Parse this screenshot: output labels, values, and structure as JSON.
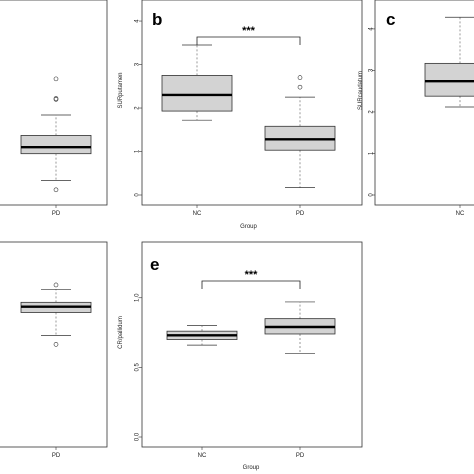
{
  "chart_data": [
    {
      "panel_label": "",
      "type": "box",
      "xlabel": "",
      "ylabel": "",
      "categories": [
        "PD"
      ],
      "ylim": [
        0,
        4.3
      ],
      "yticks": [],
      "significance": "",
      "boxes": [
        {
          "category": "PD",
          "min": 0.33,
          "q1": 0.95,
          "median": 1.1,
          "q3": 1.37,
          "max": 1.84,
          "outliers": [
            0.12,
            2.2,
            2.22,
            2.67
          ],
          "color": "#d3d3d3"
        }
      ]
    },
    {
      "panel_label": "b",
      "type": "box",
      "xlabel": "Group",
      "ylabel": "SURputamen",
      "categories": [
        "NC",
        "PD"
      ],
      "ylim": [
        0,
        4.3
      ],
      "yticks": [
        "0",
        "1",
        "2",
        "3",
        "4"
      ],
      "significance": "***",
      "boxes": [
        {
          "category": "NC",
          "min": 1.72,
          "q1": 1.93,
          "median": 2.3,
          "q3": 2.75,
          "max": 3.45,
          "outliers": [],
          "color": "#d3d3d3"
        },
        {
          "category": "PD",
          "min": 0.17,
          "q1": 1.03,
          "median": 1.28,
          "q3": 1.58,
          "max": 2.25,
          "outliers": [
            2.48,
            2.7
          ],
          "color": "#d3d3d3"
        }
      ]
    },
    {
      "panel_label": "c",
      "type": "box",
      "xlabel": "",
      "ylabel": "SURcaudatum",
      "categories": [
        "NC"
      ],
      "ylim": [
        0,
        4.6
      ],
      "yticks": [
        "0",
        "1",
        "2",
        "3",
        "4"
      ],
      "significance": "",
      "boxes": [
        {
          "category": "NC",
          "min": 2.12,
          "q1": 2.38,
          "median": 2.74,
          "q3": 3.17,
          "max": 4.28,
          "outliers": [],
          "color": "#d3d3d3"
        }
      ]
    },
    {
      "panel_label": "",
      "type": "box",
      "xlabel": "",
      "ylabel": "",
      "categories": [
        "PD"
      ],
      "ylim": [
        0,
        1.25
      ],
      "yticks": [],
      "significance": "",
      "boxes": [
        {
          "category": "PD",
          "min": 0.7,
          "q1": 0.86,
          "median": 0.9,
          "q3": 0.93,
          "max": 1.02,
          "outliers": [
            0.64,
            1.05
          ],
          "color": "#d3d3d3"
        }
      ]
    },
    {
      "panel_label": "e",
      "type": "box",
      "xlabel": "Group",
      "ylabel": "CR/pallidum",
      "categories": [
        "NC",
        "PD"
      ],
      "ylim": [
        0,
        1.3
      ],
      "yticks": [
        "0.0",
        "0.5",
        "1.0"
      ],
      "significance": "***",
      "boxes": [
        {
          "category": "NC",
          "min": 0.66,
          "q1": 0.7,
          "median": 0.73,
          "q3": 0.76,
          "max": 0.8,
          "outliers": [],
          "color": "#d3d3d3"
        },
        {
          "category": "PD",
          "min": 0.6,
          "q1": 0.74,
          "median": 0.79,
          "q3": 0.85,
          "max": 0.97,
          "outliers": [],
          "color": "#d3d3d3"
        }
      ]
    }
  ]
}
